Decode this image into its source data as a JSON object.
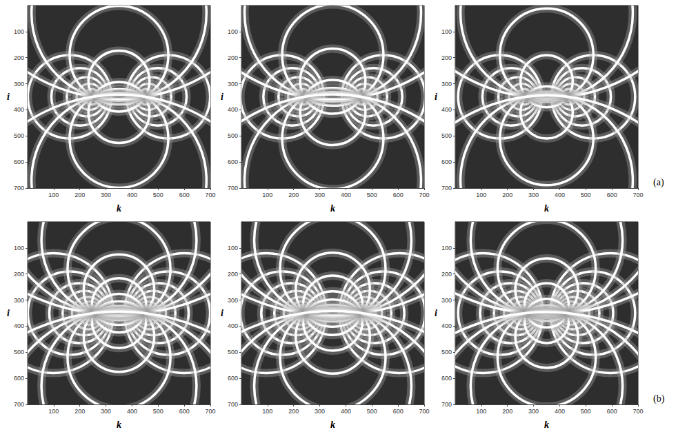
{
  "chart_data": [
    {
      "type": "circles",
      "xlabel": "k",
      "ylabel": "i",
      "xlim": [
        0,
        700
      ],
      "ylim": [
        0,
        700
      ],
      "xticks": [
        100,
        200,
        300,
        400,
        500,
        600,
        700
      ],
      "yticks": [
        100,
        200,
        300,
        400,
        500,
        600,
        700
      ],
      "grid": false,
      "color": "#ffffff",
      "circles": [
        [
          451,
          350,
          15
        ],
        [
          454,
          350,
          30
        ],
        [
          462,
          350,
          50
        ],
        [
          475,
          350,
          75
        ],
        [
          499,
          350,
          110
        ],
        [
          539,
          350,
          160
        ],
        [
          249,
          350,
          15
        ],
        [
          246,
          350,
          30
        ],
        [
          238,
          350,
          50
        ],
        [
          225,
          350,
          75
        ],
        [
          201,
          350,
          110
        ],
        [
          161,
          350,
          160
        ],
        [
          350,
          290,
          117
        ],
        [
          350,
          190,
          189
        ],
        [
          350,
          30,
          335
        ],
        [
          350,
          -290,
          648
        ],
        [
          350,
          410,
          117
        ],
        [
          350,
          510,
          189
        ],
        [
          350,
          670,
          335
        ],
        [
          350,
          990,
          648
        ]
      ]
    },
    {
      "type": "circles",
      "xlabel": "k",
      "ylabel": "i",
      "xlim": [
        0,
        700
      ],
      "ylim": [
        0,
        700
      ],
      "xticks": [
        100,
        200,
        300,
        400,
        500,
        600,
        700
      ],
      "yticks": [
        100,
        200,
        300,
        400,
        500,
        600,
        700
      ],
      "grid": false,
      "color": "#ffffff",
      "circles": [
        [
          461,
          350,
          15
        ],
        [
          464,
          350,
          30
        ],
        [
          471,
          350,
          50
        ],
        [
          483,
          350,
          75
        ],
        [
          506,
          350,
          110
        ],
        [
          544,
          350,
          160
        ],
        [
          239,
          350,
          15
        ],
        [
          236,
          350,
          30
        ],
        [
          229,
          350,
          50
        ],
        [
          217,
          350,
          75
        ],
        [
          194,
          350,
          110
        ],
        [
          156,
          350,
          160
        ],
        [
          350,
          290,
          125
        ],
        [
          350,
          190,
          194
        ],
        [
          350,
          30,
          338
        ],
        [
          350,
          -290,
          649
        ],
        [
          350,
          410,
          125
        ],
        [
          350,
          510,
          194
        ],
        [
          350,
          670,
          338
        ],
        [
          350,
          990,
          649
        ]
      ]
    },
    {
      "type": "circles",
      "xlabel": "k",
      "ylabel": "i",
      "xlim": [
        0,
        700
      ],
      "ylim": [
        0,
        700
      ],
      "xticks": [
        100,
        200,
        300,
        400,
        500,
        600,
        700
      ],
      "yticks": [
        100,
        200,
        300,
        400,
        500,
        600,
        700
      ],
      "grid": false,
      "color": "#ffffff",
      "annotation": "(a)",
      "circles": [
        [
          431,
          350,
          15
        ],
        [
          435,
          350,
          30
        ],
        [
          444,
          350,
          50
        ],
        [
          460,
          350,
          75
        ],
        [
          486,
          350,
          110
        ],
        [
          529,
          350,
          160
        ],
        [
          269,
          350,
          15
        ],
        [
          265,
          350,
          30
        ],
        [
          256,
          350,
          50
        ],
        [
          240,
          350,
          75
        ],
        [
          214,
          350,
          110
        ],
        [
          171,
          350,
          160
        ],
        [
          350,
          290,
          100
        ],
        [
          350,
          190,
          179
        ],
        [
          350,
          30,
          330
        ],
        [
          350,
          -290,
          645
        ],
        [
          350,
          410,
          100
        ],
        [
          350,
          510,
          179
        ],
        [
          350,
          670,
          330
        ],
        [
          350,
          990,
          645
        ]
      ]
    },
    {
      "type": "circles",
      "xlabel": "k",
      "ylabel": "i",
      "xlim": [
        0,
        700
      ],
      "ylim": [
        0,
        700
      ],
      "xticks": [
        100,
        200,
        300,
        400,
        500,
        600,
        700
      ],
      "yticks": [
        100,
        200,
        300,
        400,
        500,
        600,
        700
      ],
      "grid": false,
      "color": "#ffffff",
      "circles": [
        [
          450,
          350,
          10
        ],
        [
          452,
          350,
          20
        ],
        [
          455,
          350,
          32
        ],
        [
          460,
          350,
          45
        ],
        [
          468,
          350,
          62
        ],
        [
          481,
          350,
          85
        ],
        [
          502,
          350,
          115
        ],
        [
          539,
          350,
          160
        ],
        [
          601,
          350,
          230
        ],
        [
          250,
          350,
          10
        ],
        [
          248,
          350,
          20
        ],
        [
          245,
          350,
          32
        ],
        [
          240,
          350,
          45
        ],
        [
          232,
          350,
          62
        ],
        [
          219,
          350,
          85
        ],
        [
          198,
          350,
          115
        ],
        [
          161,
          350,
          160
        ],
        [
          99,
          350,
          230
        ],
        [
          350,
          320,
          104
        ],
        [
          350,
          260,
          135
        ],
        [
          350,
          180,
          197
        ],
        [
          350,
          70,
          297
        ],
        [
          350,
          -100,
          461
        ],
        [
          350,
          -450,
          806
        ],
        [
          350,
          380,
          104
        ],
        [
          350,
          440,
          135
        ],
        [
          350,
          520,
          197
        ],
        [
          350,
          630,
          297
        ],
        [
          350,
          800,
          461
        ],
        [
          350,
          1150,
          806
        ]
      ]
    },
    {
      "type": "circles",
      "xlabel": "k",
      "ylabel": "i",
      "xlim": [
        0,
        700
      ],
      "ylim": [
        0,
        700
      ],
      "xticks": [
        100,
        200,
        300,
        400,
        500,
        600,
        700
      ],
      "yticks": [
        100,
        200,
        300,
        400,
        500,
        600,
        700
      ],
      "grid": false,
      "color": "#ffffff",
      "circles": [
        [
          460,
          350,
          10
        ],
        [
          462,
          350,
          20
        ],
        [
          465,
          350,
          32
        ],
        [
          469,
          350,
          45
        ],
        [
          476,
          350,
          62
        ],
        [
          489,
          350,
          85
        ],
        [
          509,
          350,
          115
        ],
        [
          544,
          350,
          160
        ],
        [
          605,
          350,
          230
        ],
        [
          240,
          350,
          10
        ],
        [
          238,
          350,
          20
        ],
        [
          235,
          350,
          32
        ],
        [
          231,
          350,
          45
        ],
        [
          224,
          350,
          62
        ],
        [
          211,
          350,
          85
        ],
        [
          191,
          350,
          115
        ],
        [
          156,
          350,
          160
        ],
        [
          95,
          350,
          230
        ],
        [
          350,
          320,
          114
        ],
        [
          350,
          260,
          142
        ],
        [
          350,
          180,
          202
        ],
        [
          350,
          70,
          301
        ],
        [
          350,
          -100,
          463
        ],
        [
          350,
          -450,
          808
        ],
        [
          350,
          380,
          114
        ],
        [
          350,
          440,
          142
        ],
        [
          350,
          520,
          202
        ],
        [
          350,
          630,
          301
        ],
        [
          350,
          800,
          463
        ],
        [
          350,
          1150,
          808
        ]
      ]
    },
    {
      "type": "circles",
      "xlabel": "k",
      "ylabel": "i",
      "xlim": [
        0,
        700
      ],
      "ylim": [
        0,
        700
      ],
      "xticks": [
        100,
        200,
        300,
        400,
        500,
        600,
        700
      ],
      "yticks": [
        100,
        200,
        300,
        400,
        500,
        600,
        700
      ],
      "grid": false,
      "color": "#ffffff",
      "annotation": "(b)",
      "circles": [
        [
          431,
          350,
          10
        ],
        [
          432,
          350,
          20
        ],
        [
          436,
          350,
          32
        ],
        [
          442,
          350,
          45
        ],
        [
          451,
          350,
          62
        ],
        [
          467,
          350,
          85
        ],
        [
          490,
          350,
          115
        ],
        [
          529,
          350,
          160
        ],
        [
          594,
          350,
          230
        ],
        [
          269,
          350,
          10
        ],
        [
          268,
          350,
          20
        ],
        [
          264,
          350,
          32
        ],
        [
          258,
          350,
          45
        ],
        [
          249,
          350,
          62
        ],
        [
          233,
          350,
          85
        ],
        [
          210,
          350,
          115
        ],
        [
          171,
          350,
          160
        ],
        [
          106,
          350,
          230
        ],
        [
          350,
          320,
          85
        ],
        [
          350,
          260,
          120
        ],
        [
          350,
          180,
          188
        ],
        [
          350,
          70,
          291
        ],
        [
          350,
          -100,
          457
        ],
        [
          350,
          -450,
          804
        ],
        [
          350,
          380,
          85
        ],
        [
          350,
          440,
          120
        ],
        [
          350,
          520,
          188
        ],
        [
          350,
          630,
          291
        ],
        [
          350,
          800,
          457
        ],
        [
          350,
          1150,
          804
        ]
      ]
    }
  ]
}
